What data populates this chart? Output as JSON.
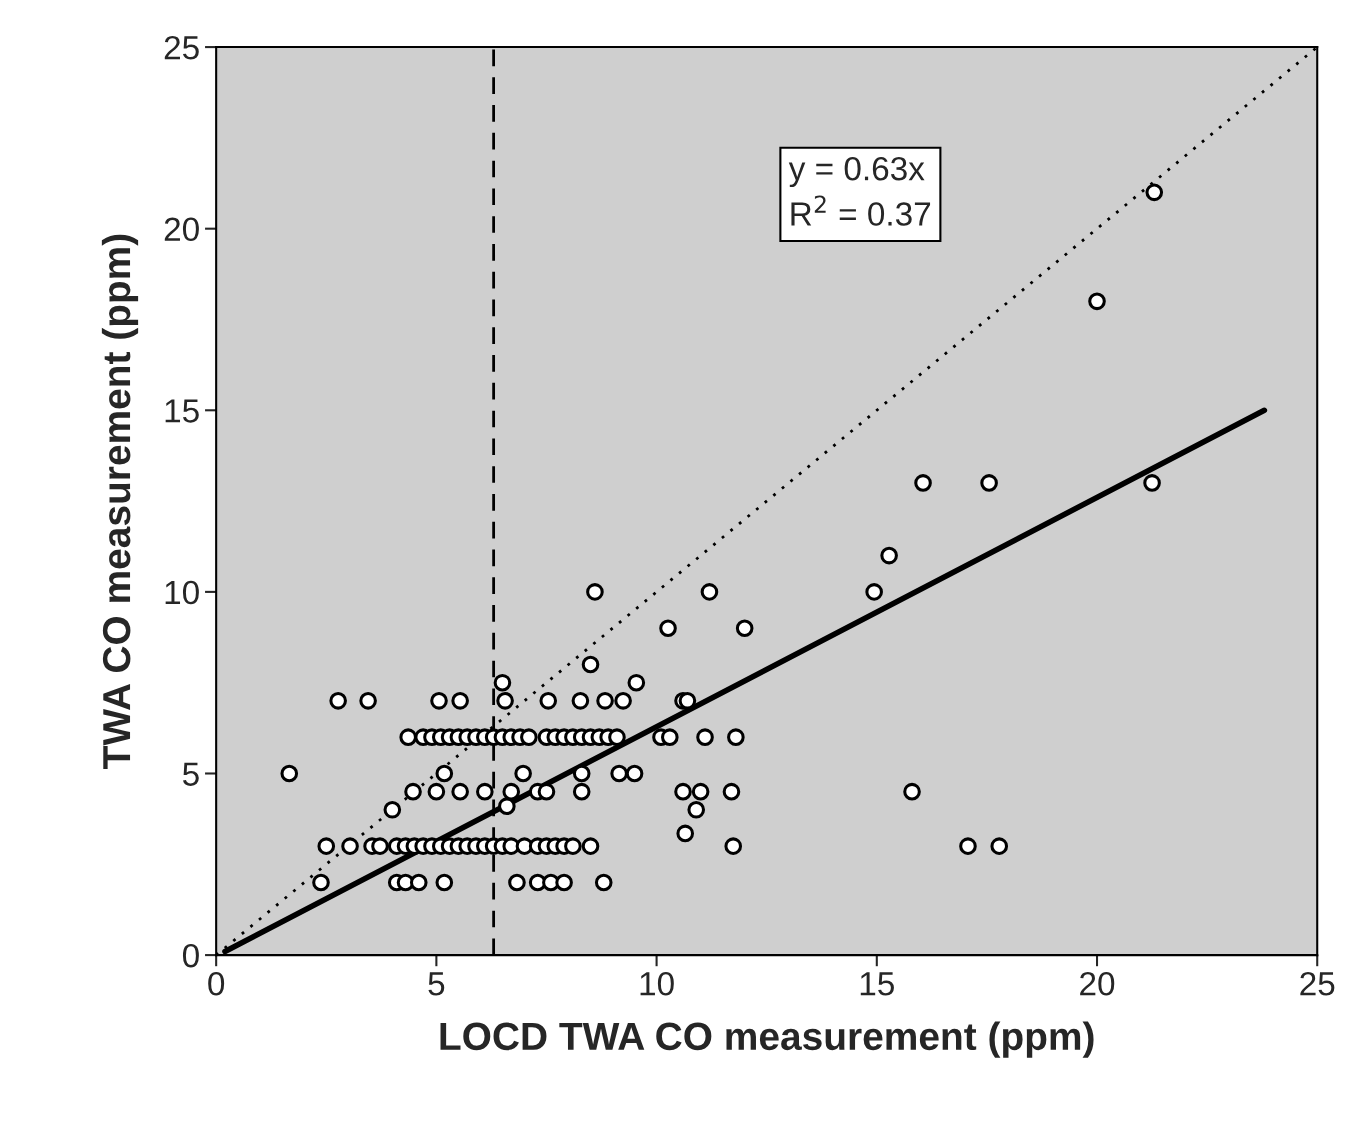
{
  "chart_data": {
    "type": "scatter",
    "xlabel": "LOCD TWA CO measurement (ppm)",
    "ylabel": "TWA CO measurement (ppm)",
    "xlim": [
      0,
      25
    ],
    "ylim": [
      0,
      25
    ],
    "xticks": [
      0,
      5,
      10,
      15,
      20,
      25
    ],
    "yticks": [
      0,
      5,
      10,
      15,
      20,
      25
    ],
    "annotations": [
      "y = 0.63x\nR$^{2}$ = 0.37"
    ],
    "ref_lines": [
      {
        "axis": "x",
        "value": 6.3,
        "color": "#000000",
        "line_style": "dashed"
      }
    ],
    "series": [
      {
        "color": "#ffffff",
        "marker": "circle",
        "x": [
          1.66,
          2.38,
          2.5,
          2.77,
          3.04,
          3.45,
          3.54,
          3.72,
          4.0,
          4.1,
          4.3,
          4.6,
          4.36,
          4.47,
          4.1,
          4.3,
          4.5,
          4.7,
          4.9,
          5.1,
          5.3,
          5.5,
          5.7,
          5.9,
          6.1,
          6.3,
          6.5,
          6.7,
          7.0,
          7.3,
          7.5,
          7.7,
          7.9,
          8.1,
          8.5,
          5.0,
          5.06,
          5.18,
          5.18,
          5.54,
          5.54,
          4.7,
          4.9,
          5.1,
          5.3,
          5.5,
          5.7,
          5.9,
          6.1,
          6.3,
          6.5,
          6.7,
          6.9,
          7.1,
          7.5,
          7.7,
          7.9,
          8.1,
          8.3,
          8.5,
          8.7,
          8.9,
          9.1,
          6.1,
          6.5,
          6.56,
          6.6,
          6.7,
          6.83,
          6.97,
          7.3,
          7.5,
          7.54,
          7.3,
          7.6,
          7.9,
          8.3,
          8.3,
          8.27,
          8.6,
          8.83,
          8.8,
          9.15,
          9.24,
          9.5,
          9.54,
          10.1,
          10.3,
          10.26,
          10.6,
          10.65,
          10.6,
          10.7,
          10.9,
          11.0,
          11.1,
          11.2,
          11.7,
          11.74,
          11.8,
          12.0,
          14.94,
          15.28,
          15.8,
          16.05,
          17.07,
          17.55,
          17.78,
          20.0,
          21.25,
          21.3,
          8.5
        ],
        "values": [
          5,
          2,
          3,
          7,
          3,
          7,
          3,
          3,
          4,
          2,
          2,
          2,
          6,
          4.5,
          3,
          3,
          3,
          3,
          3,
          3,
          3,
          3,
          3,
          3,
          3,
          3,
          3,
          3,
          3,
          3,
          3,
          3,
          3,
          3,
          3,
          4.5,
          7,
          5,
          2,
          4.5,
          7,
          6,
          6,
          6,
          6,
          6,
          6,
          6,
          6,
          6,
          6,
          6,
          6,
          6,
          6,
          6,
          6,
          6,
          6,
          6,
          6,
          6,
          6,
          4.5,
          7.5,
          7,
          4.1,
          4.5,
          2,
          5,
          4.5,
          4.5,
          7,
          2,
          2,
          2,
          5,
          4.5,
          7,
          10,
          7,
          2,
          5,
          7,
          5,
          7.5,
          6,
          6,
          9,
          4.5,
          3.35,
          7,
          7,
          4,
          4.5,
          6,
          10,
          4.5,
          3,
          6,
          9,
          10,
          11,
          4.5,
          13,
          3,
          13,
          3,
          18,
          13,
          21,
          8
        ]
      },
      {
        "type": "line",
        "color": "#000000",
        "line_style": "solid",
        "marker": "none",
        "x": [
          0.2,
          23.8
        ],
        "values": [
          0.1,
          15
        ]
      },
      {
        "type": "line",
        "color": "#000000",
        "line_style": "dotted",
        "marker": "none",
        "x": [
          0,
          25
        ],
        "values": [
          0,
          25
        ]
      }
    ]
  }
}
